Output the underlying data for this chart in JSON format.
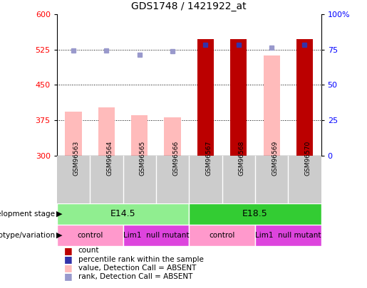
{
  "title": "GDS1748 / 1421922_at",
  "samples": [
    "GSM96563",
    "GSM96564",
    "GSM96565",
    "GSM96566",
    "GSM96567",
    "GSM96568",
    "GSM96569",
    "GSM96570"
  ],
  "ylim_left": [
    300,
    600
  ],
  "ylim_right": [
    0,
    100
  ],
  "yticks_left": [
    300,
    375,
    450,
    525,
    600
  ],
  "yticks_right": [
    0,
    25,
    50,
    75,
    100
  ],
  "pink_bar_values": [
    393,
    402,
    385,
    381,
    547,
    547,
    513,
    547
  ],
  "dark_red_bar_values": [
    null,
    null,
    null,
    null,
    547,
    547,
    null,
    547
  ],
  "blue_square_values": [
    524,
    523,
    514,
    522,
    536,
    535,
    529,
    535
  ],
  "absent_rank": [
    true,
    true,
    true,
    true,
    false,
    false,
    true,
    false
  ],
  "dev_stage": [
    {
      "label": "E14.5",
      "start": 0,
      "end": 4,
      "color": "#90EE90"
    },
    {
      "label": "E18.5",
      "start": 4,
      "end": 8,
      "color": "#33CC33"
    }
  ],
  "genotype": [
    {
      "label": "control",
      "start": 0,
      "end": 2,
      "color": "#FF99CC"
    },
    {
      "label": "Lim1  null mutant",
      "start": 2,
      "end": 4,
      "color": "#DD44DD"
    },
    {
      "label": "control",
      "start": 4,
      "end": 6,
      "color": "#FF99CC"
    },
    {
      "label": "Lim1  null mutant",
      "start": 6,
      "end": 8,
      "color": "#DD44DD"
    }
  ],
  "pink_color": "#FFBBBB",
  "dark_red_color": "#BB0000",
  "blue_color": "#3333AA",
  "light_blue_color": "#9999CC",
  "bar_width": 0.5,
  "title_fontsize": 10,
  "tick_fontsize": 8,
  "gridline_color": "black",
  "gridline_style": "dotted",
  "left_label_color": "red",
  "right_label_color": "blue"
}
